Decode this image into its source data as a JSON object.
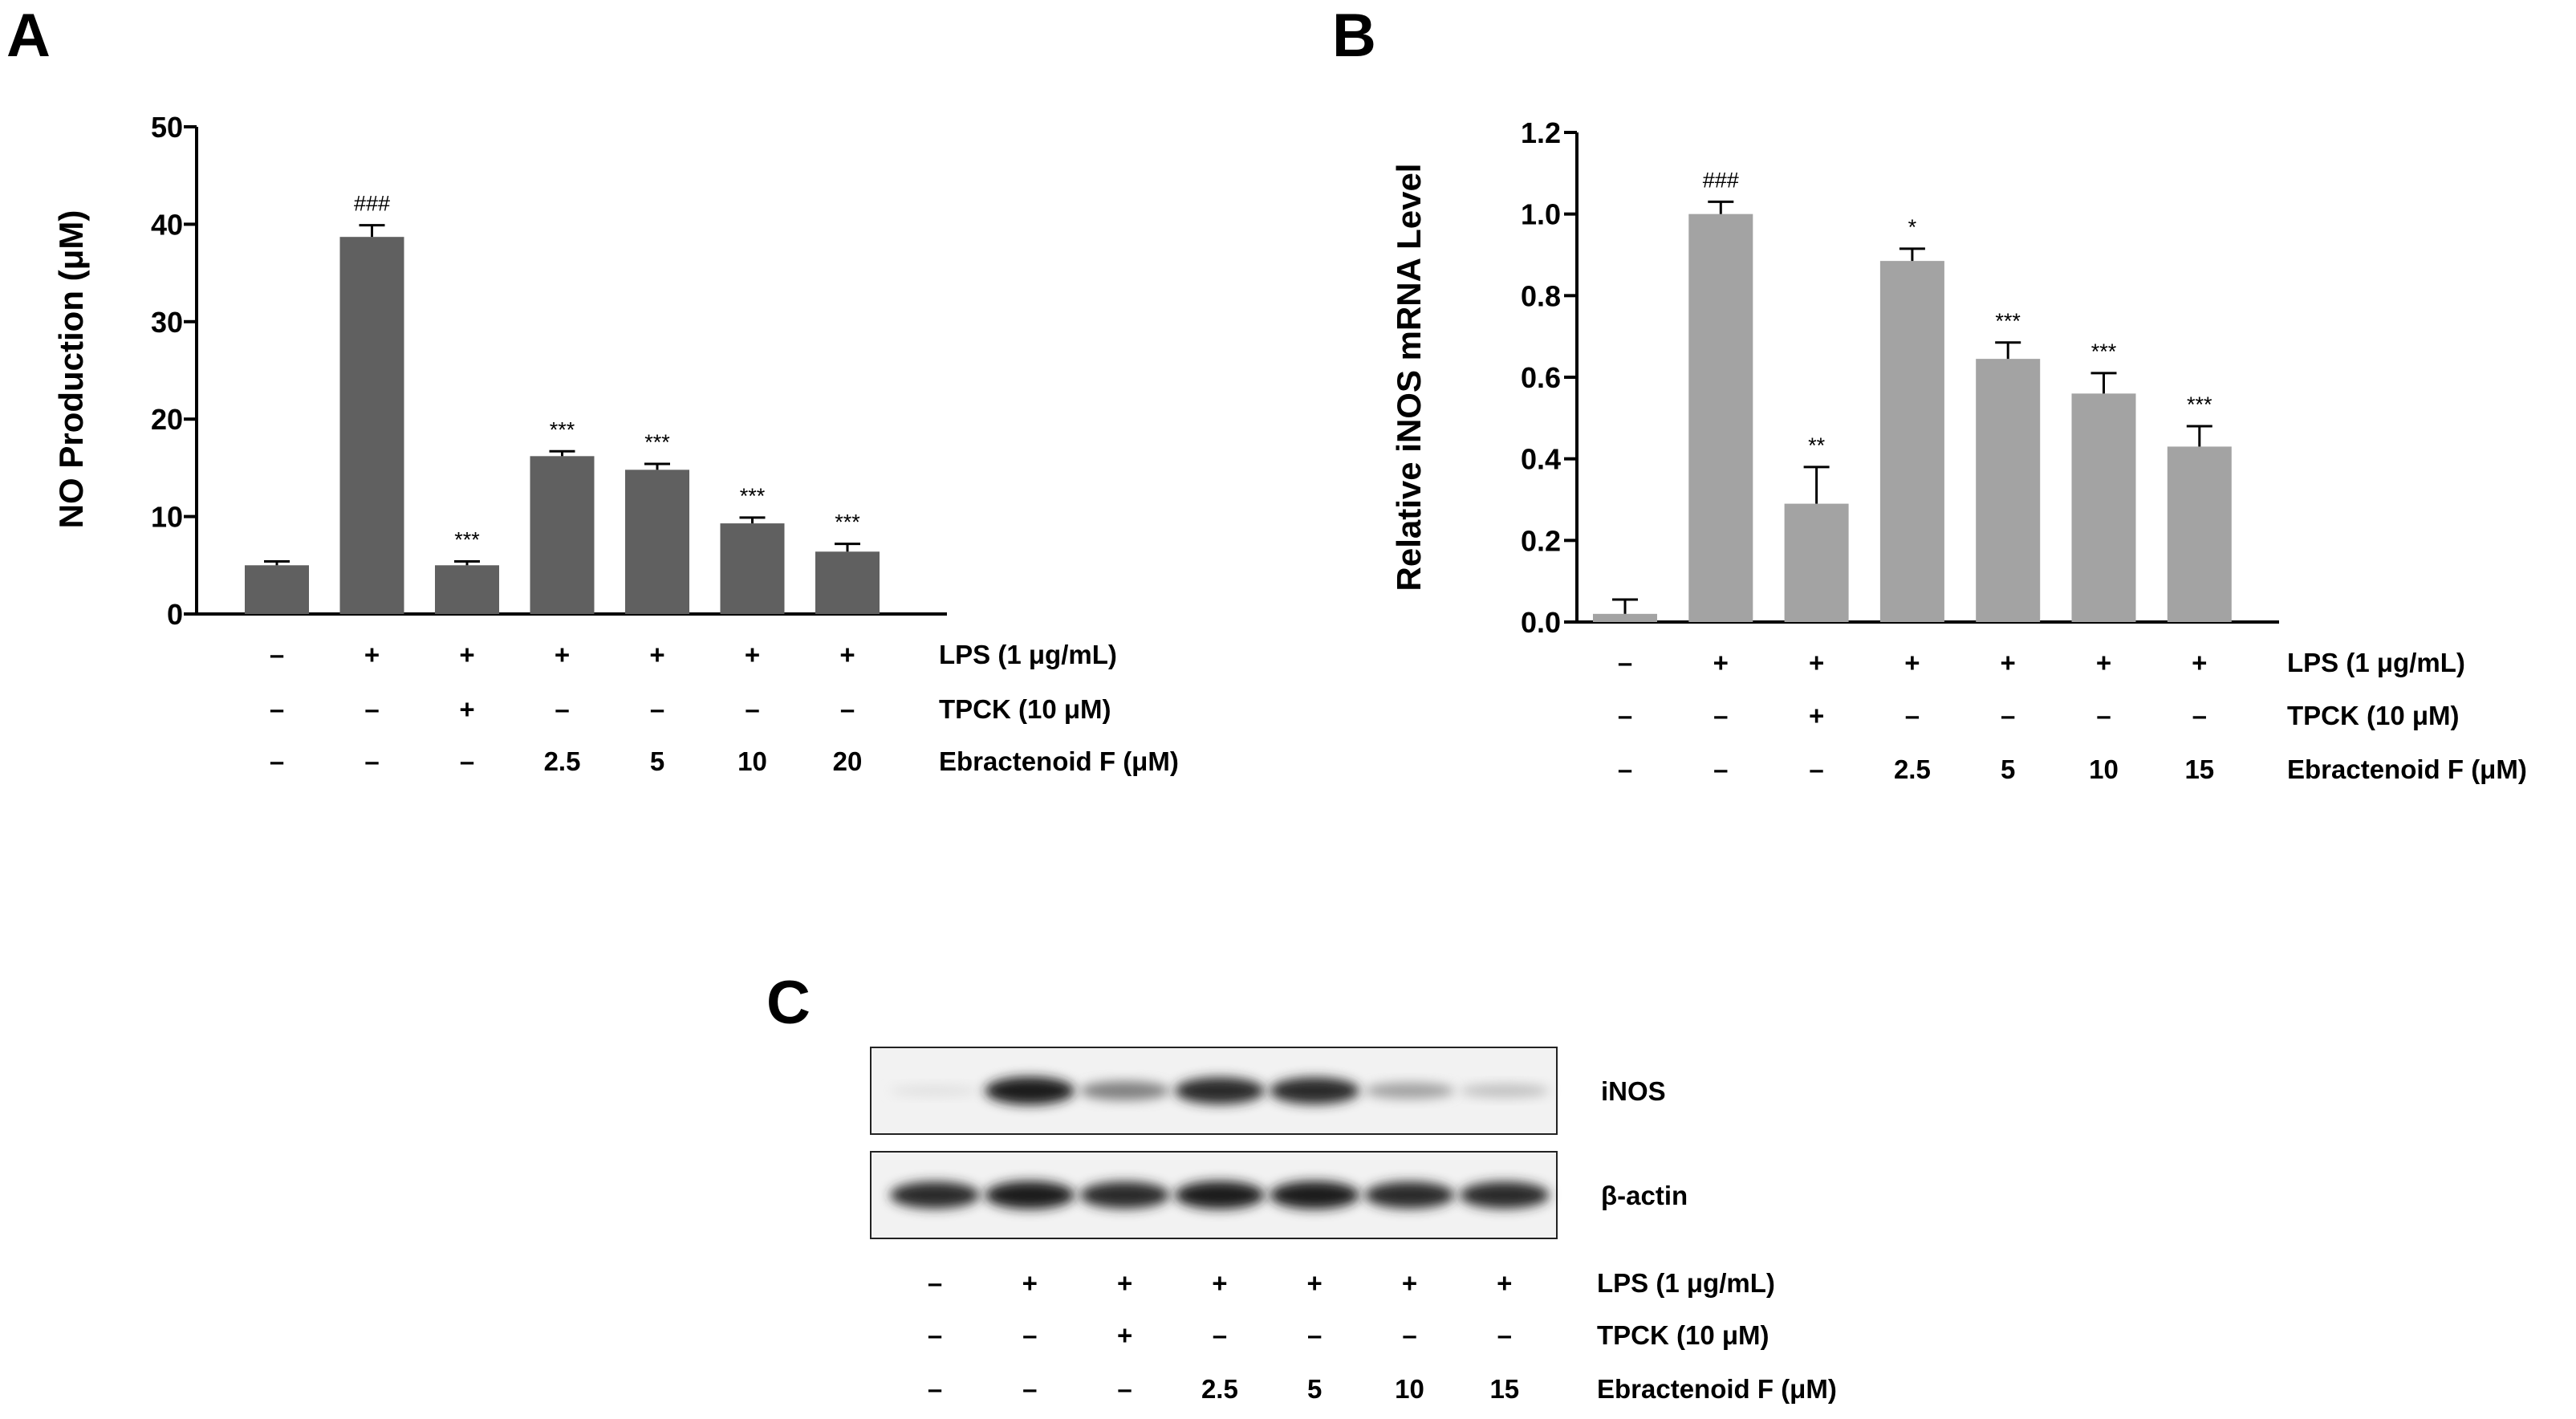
{
  "chart_data": [
    {
      "panel": "A",
      "type": "bar",
      "ylabel": "NO Production (μM)",
      "ylim": [
        0,
        50
      ],
      "yticks": [
        0,
        10,
        20,
        30,
        40,
        50
      ],
      "values": [
        5.0,
        38.7,
        5.0,
        16.2,
        14.8,
        9.3,
        6.4
      ],
      "errors": [
        0.4,
        1.2,
        0.4,
        0.5,
        0.6,
        0.6,
        0.8
      ],
      "annotations": [
        "",
        "###",
        "***",
        "***",
        "***",
        "***",
        "***"
      ],
      "bar_color": "#606060",
      "conditions": [
        {
          "label": "LPS (1 μg/mL)",
          "values": [
            "–",
            "+",
            "+",
            "+",
            "+",
            "+",
            "+"
          ]
        },
        {
          "label": "TPCK (10 μM)",
          "values": [
            "–",
            "–",
            "+",
            "–",
            "–",
            "–",
            "–"
          ]
        },
        {
          "label": "Ebractenoid F (μM)",
          "values": [
            "–",
            "–",
            "–",
            "2.5",
            "5",
            "10",
            "20"
          ]
        }
      ]
    },
    {
      "panel": "B",
      "type": "bar",
      "ylabel": "Relative iNOS mRNA Level",
      "ylim": [
        0,
        1.2
      ],
      "yticks": [
        "0.0",
        "0.2",
        "0.4",
        "0.6",
        "0.8",
        "1.0",
        "1.2"
      ],
      "values": [
        0.02,
        1.0,
        0.29,
        0.885,
        0.645,
        0.56,
        0.43
      ],
      "errors": [
        0.035,
        0.03,
        0.09,
        0.03,
        0.04,
        0.05,
        0.05
      ],
      "annotations": [
        "",
        "###",
        "**",
        "*",
        "***",
        "***",
        "***"
      ],
      "bar_color": "#a3a3a3",
      "conditions": [
        {
          "label": "LPS (1 μg/mL)",
          "values": [
            "–",
            "+",
            "+",
            "+",
            "+",
            "+",
            "+"
          ]
        },
        {
          "label": "TPCK (10 μM)",
          "values": [
            "–",
            "–",
            "+",
            "–",
            "–",
            "–",
            "–"
          ]
        },
        {
          "label": "Ebractenoid F (μM)",
          "values": [
            "–",
            "–",
            "–",
            "2.5",
            "5",
            "10",
            "15"
          ]
        }
      ]
    }
  ],
  "blot": {
    "panel": "C",
    "bands": [
      {
        "label": "iNOS",
        "intensity": [
          0.05,
          0.95,
          0.5,
          0.9,
          0.9,
          0.35,
          0.2
        ]
      },
      {
        "label": "β-actin",
        "intensity": [
          0.9,
          0.95,
          0.9,
          0.95,
          0.95,
          0.9,
          0.9
        ]
      }
    ],
    "conditions": [
      {
        "label": "LPS (1 μg/mL)",
        "values": [
          "–",
          "+",
          "+",
          "+",
          "+",
          "+",
          "+"
        ]
      },
      {
        "label": "TPCK (10 μM)",
        "values": [
          "–",
          "–",
          "+",
          "–",
          "–",
          "–",
          "–"
        ]
      },
      {
        "label": "Ebractenoid F (μM)",
        "values": [
          "–",
          "–",
          "–",
          "2.5",
          "5",
          "10",
          "15"
        ]
      }
    ]
  }
}
